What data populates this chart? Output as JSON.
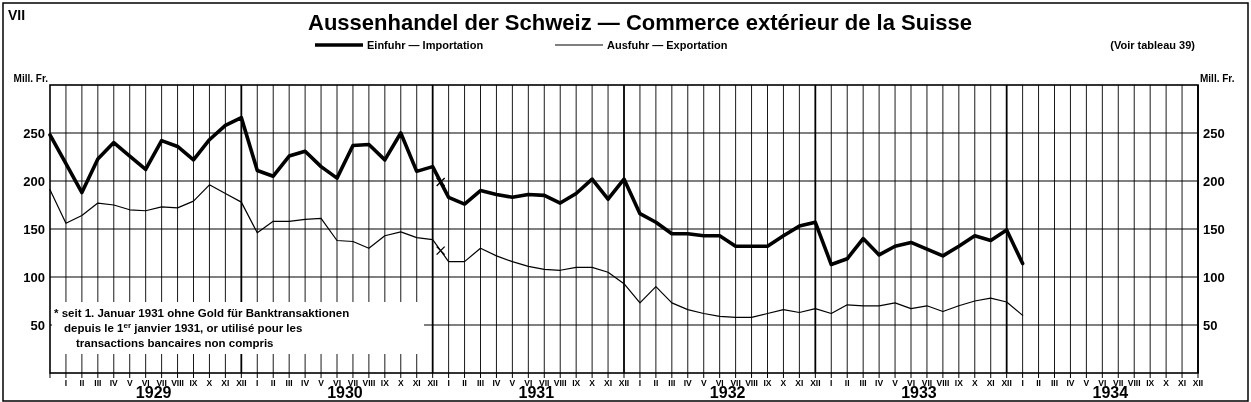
{
  "chart_data": {
    "type": "line",
    "title": "Aussenhandel der Schweiz — Commerce extérieur de la Suisse",
    "ylabel": "Mill. Fr.",
    "y2label": "Mill. Fr.",
    "annotations": [
      "VII",
      "(Voir tableau 39)",
      "* seit 1. Januar 1931 ohne Gold für Banktransaktionen",
      "depuis le 1$^{er}$ janvier 1931, or utilisé pour les transactions bancaires non compris",
      "1929",
      "1930",
      "1931",
      "1932",
      "1933",
      "1934"
    ],
    "categories": [
      null,
      "I",
      "II",
      "III",
      "IV",
      "V",
      "VI",
      "VII",
      "VIII",
      "IX",
      "X",
      "XI",
      "XII",
      "I",
      "II",
      "III",
      "IV",
      "V",
      "VI",
      "VII",
      "VIII",
      "IX",
      "X",
      "XI",
      "XII",
      "I",
      "II",
      "III",
      "IV",
      "V",
      "VI",
      "VII",
      "VIII",
      "IX",
      "X",
      "XI",
      "XII",
      "I",
      "II",
      "III",
      "IV",
      "V",
      "VI",
      "VII",
      "VIII",
      "IX",
      "X",
      "XI",
      "XII",
      "I",
      "II",
      "III",
      "IV",
      "V",
      "VI",
      "VII",
      "VIII",
      "IX",
      "X",
      "XI",
      "XII",
      "I",
      "II",
      "III",
      "IV",
      "V",
      "VI",
      "VII",
      "VIII",
      "IX",
      "X",
      "XI",
      "XII"
    ],
    "series": [
      {
        "name": "Einfuhr — Importation",
        "color": "#000000",
        "values": [
          248,
          218,
          188,
          223,
          240,
          226,
          212,
          242,
          236,
          222,
          243,
          258,
          266,
          211,
          205,
          226,
          231,
          215,
          203,
          237,
          238,
          222,
          250,
          210,
          215,
          183,
          176,
          190,
          186,
          183,
          186,
          185,
          177,
          187,
          202,
          181,
          202,
          166,
          157,
          145,
          145,
          143,
          143,
          132,
          132,
          132,
          143,
          153,
          157,
          113,
          119,
          140,
          123,
          132,
          136,
          129,
          122,
          132,
          143,
          138,
          149,
          114,
          null,
          null,
          null,
          null,
          null,
          null,
          null,
          null,
          null,
          null,
          null
        ]
      },
      {
        "name": "Ausfuhr — Exportation",
        "color": "#000000",
        "values": [
          191,
          156,
          164,
          177,
          175,
          170,
          169,
          173,
          172,
          179,
          196,
          187,
          178,
          146,
          158,
          158,
          160,
          161,
          138,
          137,
          130,
          143,
          147,
          141,
          139,
          116,
          116,
          130,
          122,
          116,
          111,
          108,
          107,
          110,
          110,
          105,
          93,
          73,
          90,
          73,
          66,
          62,
          59,
          58,
          58,
          62,
          66,
          63,
          67,
          62,
          71,
          70,
          70,
          73,
          67,
          70,
          64,
          70,
          75,
          78,
          74,
          60,
          null,
          null,
          null,
          null,
          null,
          null,
          null,
          null,
          null,
          null,
          null
        ]
      }
    ],
    "ylim": [
      0,
      300
    ],
    "yticks": [
      50,
      100,
      150,
      200,
      250
    ],
    "y2lim": [
      0,
      300
    ],
    "y2ticks": [
      50,
      100,
      150,
      200,
      250
    ],
    "grid": true,
    "legend": "top"
  }
}
